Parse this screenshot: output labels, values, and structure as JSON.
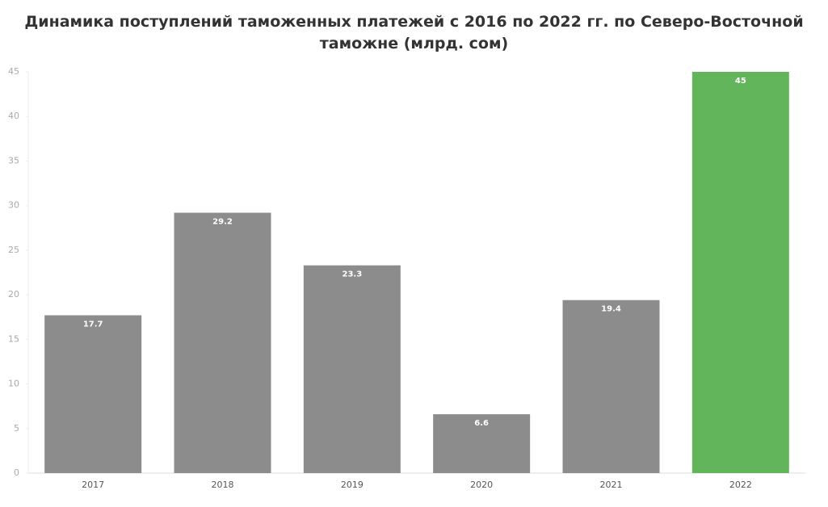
{
  "chart_data": {
    "type": "bar",
    "title": "Динамика поступлений таможенных платежей с 2016 по 2022 гг. по Северо-Восточной таможне (млрд. сом)",
    "categories": [
      "2017",
      "2018",
      "2019",
      "2020",
      "2021",
      "2022"
    ],
    "values": [
      17.7,
      29.2,
      23.3,
      6.6,
      19.4,
      45
    ],
    "colors": [
      "#8c8c8c",
      "#8c8c8c",
      "#8c8c8c",
      "#8c8c8c",
      "#8c8c8c",
      "#62b55a"
    ],
    "ylim": [
      0,
      45
    ],
    "yticks": [
      0,
      5,
      10,
      15,
      20,
      25,
      30,
      35,
      40,
      45
    ],
    "grid": false
  }
}
